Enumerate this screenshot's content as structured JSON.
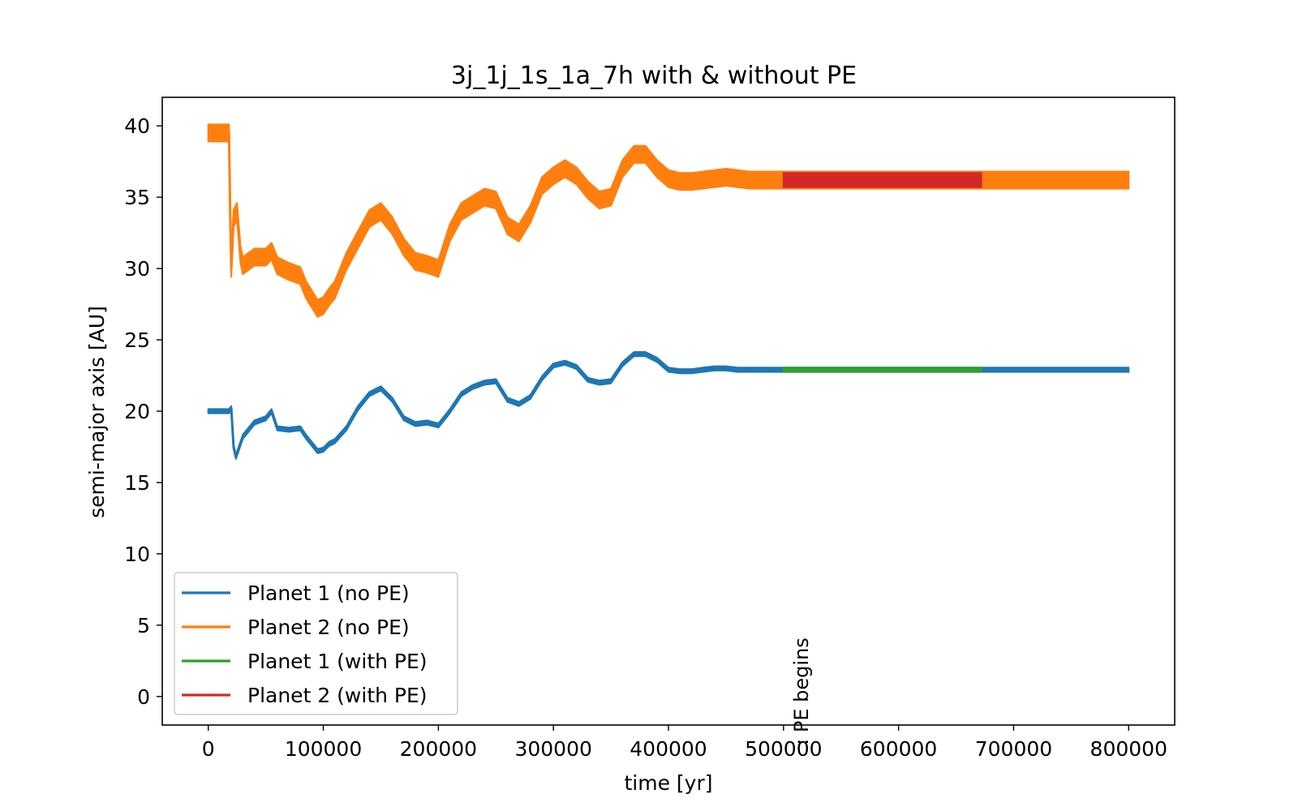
{
  "chart_data": {
    "type": "line",
    "title": "3j_1j_1s_1a_7h with & without PE",
    "xlabel": "time [yr]",
    "ylabel": "semi-major axis [AU]",
    "xlim": [
      -40000,
      840000
    ],
    "ylim": [
      -2,
      42
    ],
    "xticks": [
      0,
      100000,
      200000,
      300000,
      400000,
      500000,
      600000,
      700000,
      800000
    ],
    "yticks": [
      0,
      5,
      10,
      15,
      20,
      25,
      30,
      35,
      40
    ],
    "grid": false,
    "legend_position": "lower-left",
    "annotation": {
      "text": ": PE begins",
      "x": 500000,
      "y": 0
    },
    "series": [
      {
        "name": "Planet 1 (no PE)",
        "color": "#1f77b4",
        "band": 0.3,
        "x": [
          0,
          18000,
          20000,
          22000,
          24000,
          30000,
          40000,
          50000,
          55000,
          60000,
          70000,
          80000,
          85000,
          95000,
          100000,
          105000,
          110000,
          120000,
          130000,
          140000,
          150000,
          160000,
          170000,
          180000,
          190000,
          200000,
          210000,
          220000,
          230000,
          240000,
          250000,
          260000,
          270000,
          280000,
          290000,
          300000,
          310000,
          320000,
          330000,
          340000,
          350000,
          360000,
          370000,
          380000,
          390000,
          400000,
          410000,
          420000,
          430000,
          440000,
          450000,
          460000,
          470000,
          480000,
          490000,
          500000,
          600000,
          700000,
          800000
        ],
        "y": [
          20,
          20,
          20.2,
          17.5,
          16.8,
          18.2,
          19.2,
          19.5,
          20,
          18.8,
          18.7,
          18.8,
          18.2,
          17.2,
          17.3,
          17.7,
          17.9,
          18.8,
          20.2,
          21.2,
          21.6,
          20.8,
          19.5,
          19.1,
          19.2,
          19,
          20,
          21.2,
          21.7,
          22,
          22.1,
          20.8,
          20.5,
          21,
          22.3,
          23.2,
          23.4,
          23.1,
          22.2,
          22,
          22.1,
          23.3,
          24,
          24,
          23.6,
          22.9,
          22.8,
          22.8,
          22.9,
          23,
          23,
          22.9,
          22.9,
          22.9,
          22.9,
          22.9,
          22.9,
          22.9,
          22.9
        ]
      },
      {
        "name": "Planet 2 (no PE)",
        "color": "#ff7f0e",
        "band": 1.2,
        "x": [
          0,
          10000,
          18000,
          19000,
          20000,
          22000,
          25000,
          28000,
          30000,
          35000,
          40000,
          50000,
          55000,
          60000,
          70000,
          80000,
          85000,
          95000,
          100000,
          105000,
          110000,
          120000,
          130000,
          140000,
          150000,
          160000,
          170000,
          180000,
          190000,
          200000,
          210000,
          220000,
          230000,
          240000,
          250000,
          260000,
          270000,
          280000,
          290000,
          300000,
          310000,
          320000,
          330000,
          340000,
          350000,
          360000,
          370000,
          380000,
          390000,
          400000,
          410000,
          420000,
          430000,
          440000,
          450000,
          460000,
          470000,
          480000,
          490000,
          500000,
          600000,
          700000,
          800000
        ],
        "y": [
          39.5,
          39.5,
          39.5,
          34,
          30,
          33.5,
          34,
          31,
          30.2,
          30.5,
          30.8,
          30.8,
          31.2,
          30.2,
          29.8,
          29.5,
          28.5,
          27.2,
          27.4,
          28,
          28.5,
          30.5,
          32,
          33.5,
          34,
          33,
          31.5,
          30.5,
          30.3,
          30,
          32.5,
          34,
          34.5,
          35,
          34.8,
          33,
          32.5,
          33.8,
          35.8,
          36.5,
          37,
          36.5,
          35.5,
          34.8,
          35,
          37,
          38,
          38,
          37,
          36.3,
          36.1,
          36.1,
          36.2,
          36.3,
          36.4,
          36.3,
          36.2,
          36.2,
          36.2,
          36.2,
          36.2,
          36.2,
          36.2
        ]
      },
      {
        "name": "Planet 1 (with PE)",
        "color": "#2ca02c",
        "band": 0.3,
        "x": [
          500000,
          550000,
          600000,
          650000,
          672000
        ],
        "y": [
          22.9,
          22.9,
          22.9,
          22.9,
          22.9
        ]
      },
      {
        "name": "Planet 2 (with PE)",
        "color": "#d62728",
        "band": 1.0,
        "x": [
          500000,
          550000,
          600000,
          650000,
          672000
        ],
        "y": [
          36.2,
          36.2,
          36.2,
          36.2,
          36.2
        ]
      }
    ]
  }
}
